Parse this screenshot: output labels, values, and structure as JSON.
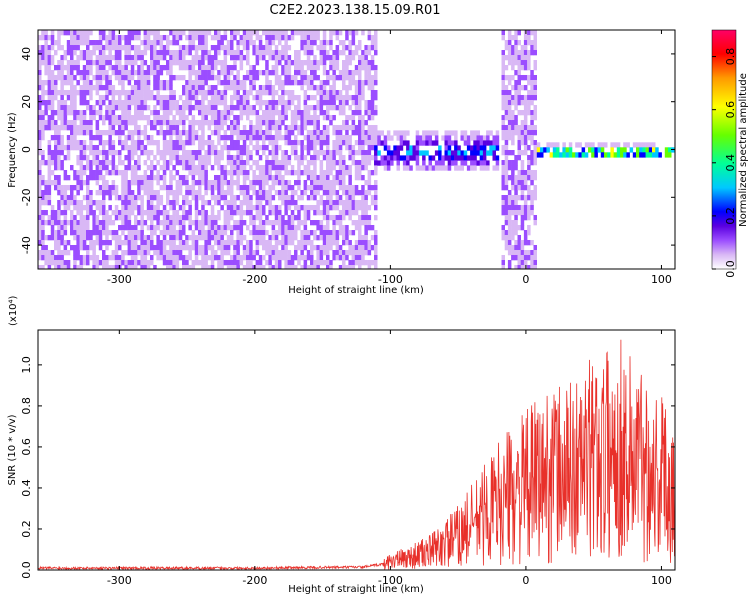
{
  "title": "C2E2.2023.138.15.09.R01",
  "colors": {
    "snr_line": "#e8302a",
    "background": "#ffffff",
    "colormap": [
      "#ffffff",
      "#d9b8f5",
      "#9b4dff",
      "#5a00e0",
      "#0000ff",
      "#00c8ff",
      "#00ff99",
      "#66ff00",
      "#ffff00",
      "#ff9900",
      "#ff0000",
      "#ff0066"
    ]
  },
  "chart_data": [
    {
      "type": "heatmap",
      "xlabel": "Height of straight line (km)",
      "ylabel": "Frequency (Hz)",
      "xlim": [
        -360,
        110
      ],
      "ylim": [
        -50,
        50
      ],
      "xticks": [
        -300,
        -200,
        -100,
        0,
        100
      ],
      "yticks": [
        -40,
        -20,
        0,
        20,
        40
      ],
      "xtick_labels": [
        "-300",
        "-200",
        "-100",
        "0",
        "100"
      ],
      "ytick_labels": [
        "-40",
        "-20",
        "0",
        "20",
        "40"
      ],
      "colorbar": {
        "label": "Normalized spectral amplitude",
        "range": [
          0.0,
          0.9
        ],
        "ticks": [
          0.0,
          0.2,
          0.4,
          0.6,
          0.8
        ],
        "tick_labels": [
          "0.0",
          "0.2",
          "0.4",
          "0.6",
          "0.8"
        ]
      },
      "regions": [
        {
          "x_range": [
            -360,
            -110
          ],
          "freq_range": [
            -50,
            50
          ],
          "level": 0.12
        },
        {
          "x_range": [
            -112,
            -20
          ],
          "freq_center": 0,
          "freq_halfwidth": 8,
          "level": 0.35
        },
        {
          "x_range": [
            -18,
            6
          ],
          "freq_range": [
            -50,
            50
          ],
          "level": 0.12
        },
        {
          "x_range": [
            8,
            110
          ],
          "freq_center": 0,
          "freq_halfwidth": 3,
          "level": 0.7
        }
      ]
    },
    {
      "type": "line",
      "xlabel": "Height of straight line (km)",
      "ylabel": "SNR (10 * v/v)",
      "scale_label": "(x10⁴)",
      "xlim": [
        -360,
        110
      ],
      "ylim": [
        0.0,
        1.17
      ],
      "xticks": [
        -300,
        -200,
        -100,
        0,
        100
      ],
      "yticks": [
        0.0,
        0.2,
        0.4,
        0.6,
        0.8,
        1.0
      ],
      "xtick_labels": [
        "-300",
        "-200",
        "-100",
        "0",
        "100"
      ],
      "ytick_labels": [
        "0.0",
        "0.2",
        "0.4",
        "0.6",
        "0.8",
        "1.0"
      ],
      "series": [
        {
          "x": [
            -360,
            -300,
            -200,
            -120,
            -105,
            -100,
            -90,
            -80,
            -70,
            -60,
            -50,
            -40,
            -30,
            -20,
            -10,
            0,
            10,
            20,
            30,
            40,
            50,
            60,
            70,
            80,
            90,
            100,
            110
          ],
          "y": [
            0.01,
            0.01,
            0.01,
            0.015,
            0.03,
            0.05,
            0.06,
            0.08,
            0.1,
            0.14,
            0.18,
            0.24,
            0.3,
            0.36,
            0.4,
            0.44,
            0.48,
            0.52,
            0.52,
            0.55,
            0.6,
            0.62,
            0.65,
            0.6,
            0.55,
            0.5,
            0.45
          ]
        }
      ]
    }
  ]
}
